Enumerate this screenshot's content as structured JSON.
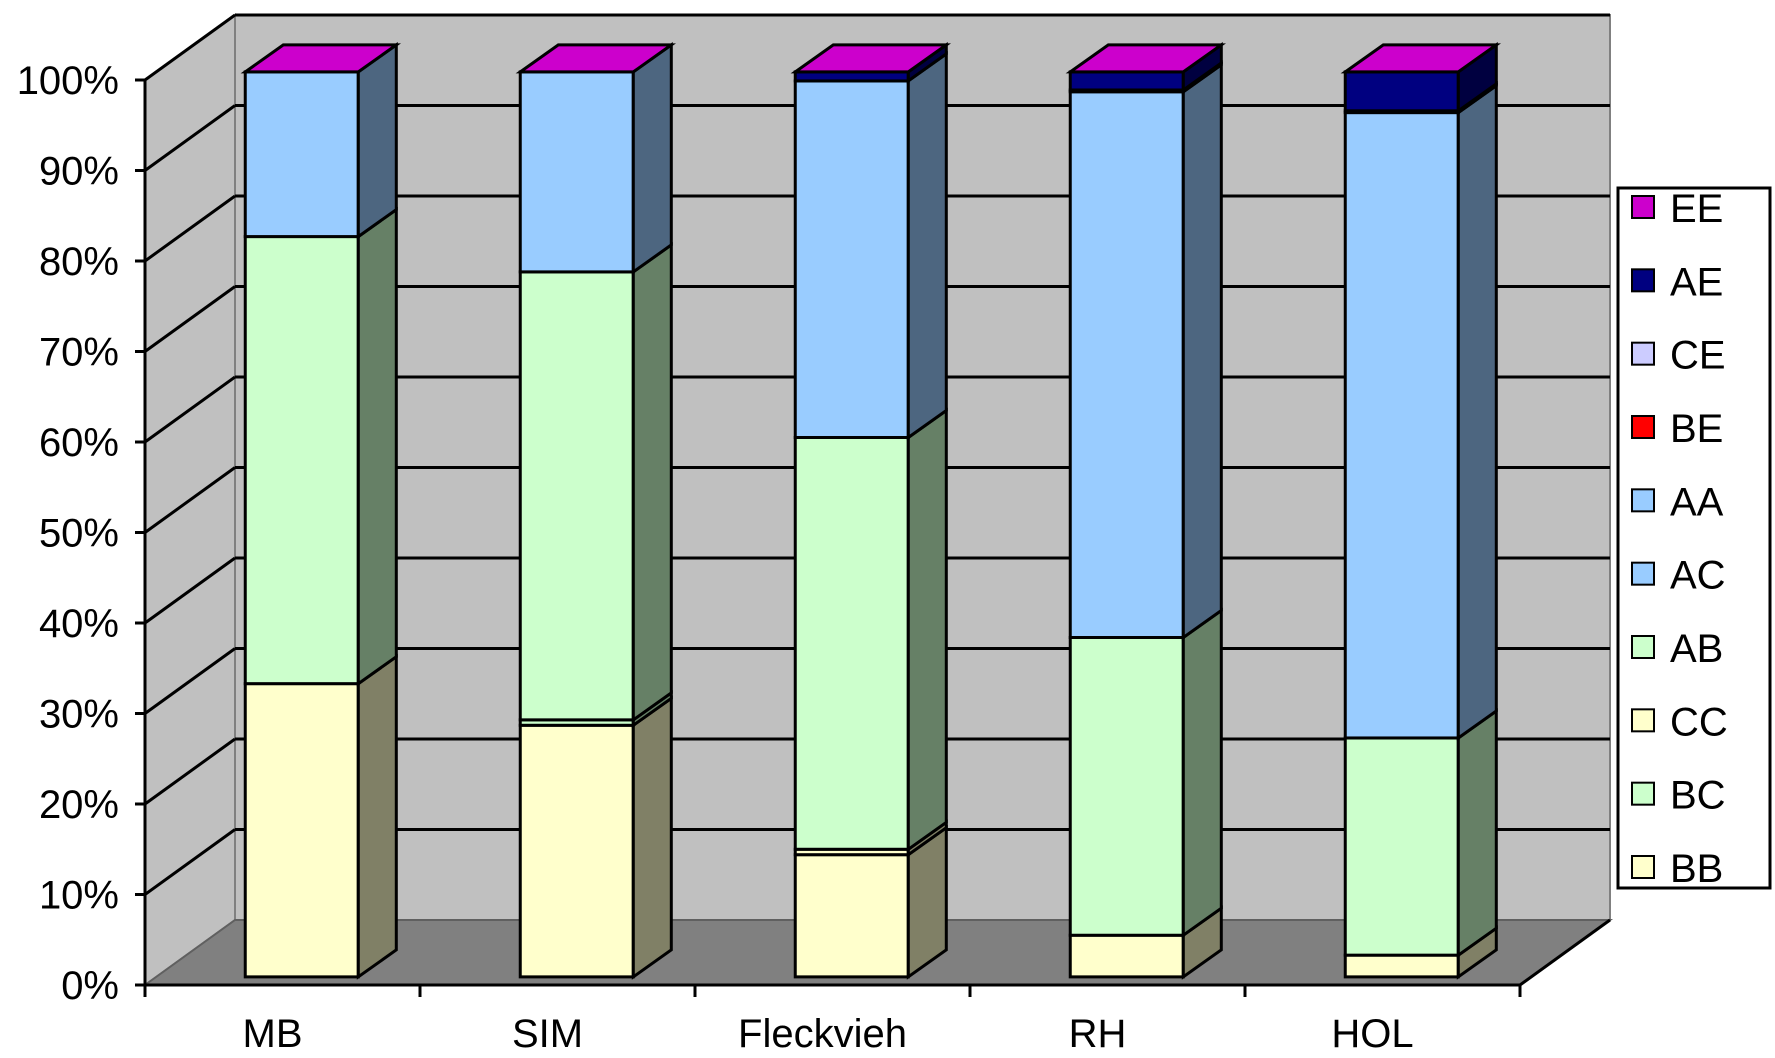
{
  "chart_data": {
    "type": "bar",
    "stacked": true,
    "percent_stacked": true,
    "three_d": true,
    "title": "",
    "xlabel": "",
    "ylabel": "",
    "ylim": [
      0,
      100
    ],
    "yticks": [
      "0%",
      "10%",
      "20%",
      "30%",
      "40%",
      "50%",
      "60%",
      "70%",
      "80%",
      "90%",
      "100%"
    ],
    "categories": [
      "MB",
      "SIM",
      "Fleckvieh",
      "RH",
      "HOL"
    ],
    "series": [
      {
        "name": "BB",
        "color": "#FFFFCC",
        "values": [
          32.4,
          27.8,
          13.5,
          4.6,
          2.4
        ]
      },
      {
        "name": "BC",
        "color": "#CCFFCC",
        "values": [
          0,
          0.6,
          0,
          0,
          0
        ]
      },
      {
        "name": "CC",
        "color": "#FFFFCC",
        "values": [
          0,
          0,
          0.6,
          0,
          0
        ]
      },
      {
        "name": "AB",
        "color": "#CCFFCC",
        "values": [
          49.4,
          49.5,
          45.5,
          32.9,
          24.0
        ]
      },
      {
        "name": "AC",
        "color": "#99CCFF",
        "values": [
          0,
          0,
          0,
          0,
          0
        ]
      },
      {
        "name": "AA",
        "color": "#99CCFF",
        "values": [
          18.2,
          22.1,
          39.4,
          60.3,
          69.1
        ]
      },
      {
        "name": "BE",
        "color": "#FF0000",
        "values": [
          0,
          0,
          0,
          0,
          0.2
        ]
      },
      {
        "name": "CE",
        "color": "#CCCCFF",
        "values": [
          0,
          0,
          0,
          0.2,
          0
        ]
      },
      {
        "name": "AE",
        "color": "#000080",
        "values": [
          0,
          0,
          1.0,
          2.0,
          4.3
        ]
      },
      {
        "name": "EE",
        "color": "#CC00CC",
        "values": [
          0,
          0,
          0,
          0,
          0
        ]
      }
    ],
    "grid": true,
    "legend": "right",
    "legend_order": [
      "EE",
      "AE",
      "CE",
      "BE",
      "AA",
      "AC",
      "AB",
      "CC",
      "BC",
      "BB"
    ]
  }
}
